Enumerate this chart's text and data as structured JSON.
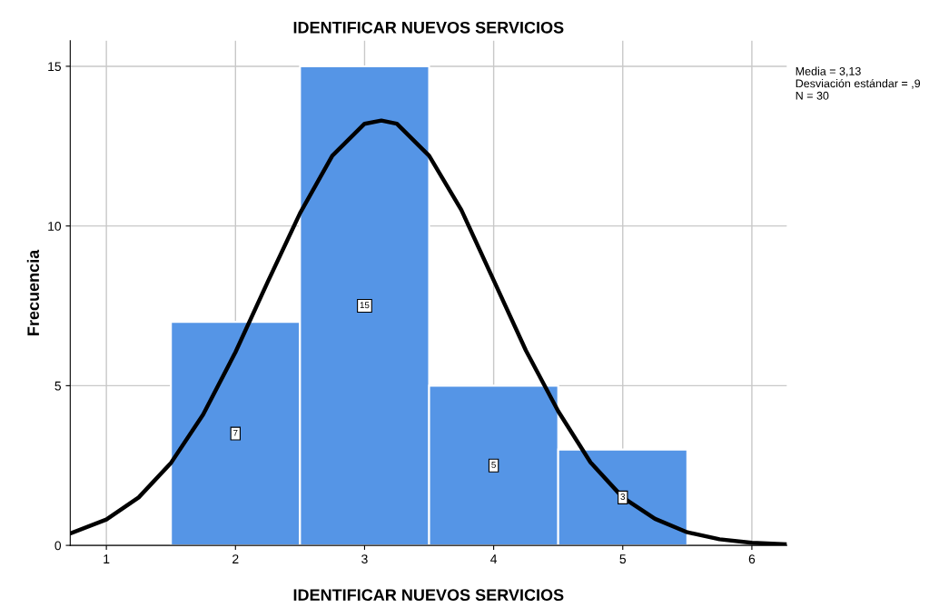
{
  "chart_data": {
    "type": "histogram",
    "title": "IDENTIFICAR NUEVOS SERVICIOS",
    "xlabel": "IDENTIFICAR NUEVOS SERVICIOS",
    "ylabel": "Frecuencia",
    "bins": [
      1.5,
      2.5,
      3.5,
      4.5,
      5.5
    ],
    "values": [
      7,
      15,
      5,
      3
    ],
    "color": "#5595e6",
    "value_labels": [
      "7",
      "15",
      "5",
      "3"
    ],
    "series": [
      {
        "type": "line",
        "color": "#000000",
        "x": [
          0.72,
          1,
          1.25,
          1.5,
          1.75,
          2,
          2.25,
          2.5,
          2.75,
          3,
          3.13,
          3.25,
          3.5,
          3.75,
          4,
          4.25,
          4.5,
          4.75,
          5,
          5.25,
          5.5,
          5.75,
          6,
          6.27
        ],
        "values": [
          0.37,
          0.81,
          1.5,
          2.58,
          4.1,
          6.05,
          8.25,
          10.4,
          12.2,
          13.2,
          13.3,
          13.2,
          12.2,
          10.5,
          8.3,
          6.1,
          4.2,
          2.6,
          1.5,
          0.83,
          0.41,
          0.19,
          0.08,
          0.03
        ]
      }
    ],
    "xlim": [
      0.72,
      6.27
    ],
    "ylim": [
      0,
      15.8
    ],
    "xticks": [
      1,
      2,
      3,
      4,
      5,
      6
    ],
    "yticks": [
      0,
      5,
      10,
      15
    ],
    "grid": true,
    "annotations": [
      "Media = 3,13\nDesviación estándar = ,9\nN = 30"
    ]
  }
}
